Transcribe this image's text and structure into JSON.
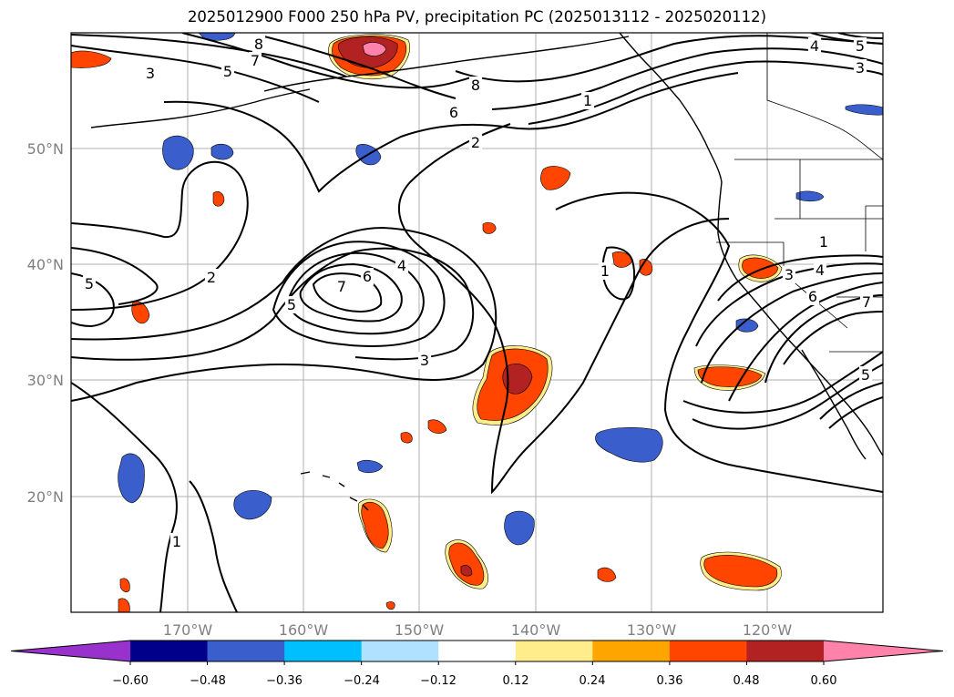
{
  "title": "2025012900 F000 250 hPa PV, precipitation PC (2025013112 - 2025020112)",
  "map": {
    "lon_labels": [
      "170°W",
      "160°W",
      "150°W",
      "140°W",
      "130°W",
      "120°W"
    ],
    "lat_labels": [
      "50°N",
      "40°N",
      "30°N",
      "20°N"
    ],
    "contour_labels": [
      "1",
      "2",
      "3",
      "4",
      "5",
      "6",
      "7",
      "8"
    ]
  },
  "colorbar": {
    "ticks": [
      "−0.60",
      "−0.48",
      "−0.36",
      "−0.24",
      "−0.12",
      "0.12",
      "0.24",
      "0.36",
      "0.48",
      "0.60"
    ],
    "colors": [
      "#9932cc",
      "#00008b",
      "#3a5fcd",
      "#00bfff",
      "#b0e2ff",
      "#ffffff",
      "#ffec8b",
      "#ffa500",
      "#ff4500",
      "#b22222",
      "#ff82ab"
    ]
  }
}
